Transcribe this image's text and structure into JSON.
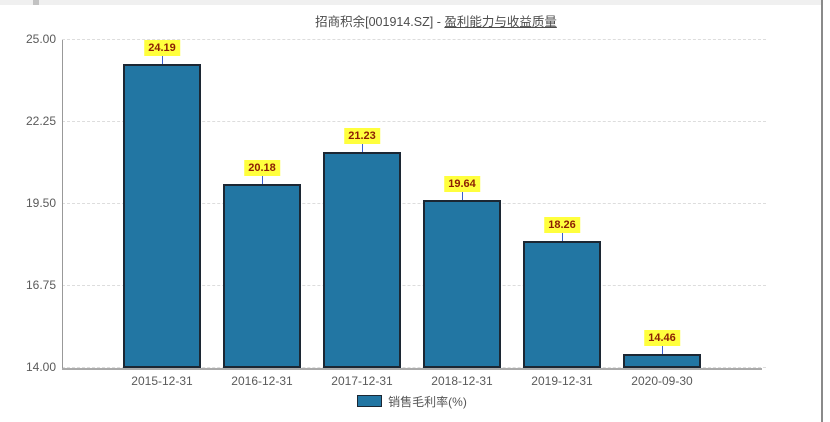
{
  "chart": {
    "title_prefix": "招商积余[001914.SZ] - ",
    "title_main": "盈利能力与收益质量"
  },
  "chart_data": {
    "type": "bar",
    "title": "招商积余[001914.SZ] - 盈利能力与收益质量",
    "categories": [
      "2015-12-31",
      "2016-12-31",
      "2017-12-31",
      "2018-12-31",
      "2019-12-31",
      "2020-09-30"
    ],
    "series": [
      {
        "name": "销售毛利率(%)",
        "values": [
          24.19,
          20.18,
          21.23,
          19.64,
          18.26,
          14.46
        ]
      }
    ],
    "xlabel": "",
    "ylabel": "",
    "ylim": [
      14.0,
      25.0
    ],
    "yticks": [
      25.0,
      22.25,
      19.5,
      16.75,
      14.0
    ],
    "grid": "dashed-horizontal",
    "legend_position": "bottom",
    "value_labels": [
      "24.19",
      "20.18",
      "21.23",
      "19.64",
      "18.26",
      "14.46"
    ],
    "colors": {
      "bar_fill": "#2276A3",
      "bar_border": "#1C2733",
      "label_bg": "#FFFF3D",
      "label_text": "#8B1E04",
      "connector": "#3A5FCD",
      "axis_line": "#999999",
      "x_axis_line": "#AAAAAA",
      "grid_line": "#DDDDDD",
      "tick_text": "#5A5A5A"
    }
  }
}
